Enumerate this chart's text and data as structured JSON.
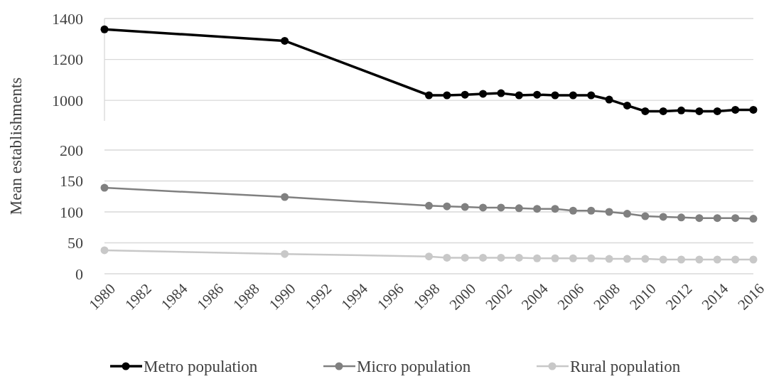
{
  "chart_data": [
    {
      "type": "line",
      "x": [
        1980,
        1990,
        1998,
        1999,
        2000,
        2001,
        2002,
        2003,
        2004,
        2005,
        2006,
        2007,
        2008,
        2009,
        2010,
        2011,
        2012,
        2013,
        2014,
        2015,
        2016
      ],
      "series": [
        {
          "name": "Metro population",
          "color": "#000000",
          "values": [
            1347,
            1291,
            1025,
            1025,
            1028,
            1032,
            1035,
            1025,
            1028,
            1025,
            1025,
            1025,
            1004,
            975,
            947,
            947,
            951,
            947,
            947,
            954,
            954
          ]
        }
      ],
      "xlim": [
        1980,
        2016
      ],
      "xticks": [
        1980,
        1982,
        1984,
        1986,
        1988,
        1990,
        1992,
        1994,
        1996,
        1998,
        2000,
        2002,
        2004,
        2006,
        2008,
        2010,
        2012,
        2014,
        2016
      ],
      "ylim": [
        900,
        1400
      ],
      "yticks": [
        1000,
        1200,
        1400
      ],
      "tick_labels": "y",
      "grid": "y",
      "legend": "bottom",
      "marker": "circle",
      "line_style": "solid"
    },
    {
      "type": "line",
      "ylabel": "Mean establishments",
      "x": [
        1980,
        1990,
        1998,
        1999,
        2000,
        2001,
        2002,
        2003,
        2004,
        2005,
        2006,
        2007,
        2008,
        2009,
        2010,
        2011,
        2012,
        2013,
        2014,
        2015,
        2016
      ],
      "series": [
        {
          "name": "Micro population",
          "color": "#808080",
          "values": [
            139,
            124,
            110,
            109,
            108,
            107,
            107,
            106,
            105,
            105,
            102,
            102,
            100,
            97,
            93,
            92,
            91,
            90,
            90,
            90,
            89
          ]
        },
        {
          "name": "Rural population",
          "color": "#c8c8c8",
          "values": [
            38,
            32,
            28,
            26,
            26,
            26,
            26,
            26,
            25,
            25,
            25,
            25,
            24,
            24,
            24,
            23,
            23,
            23,
            23,
            23,
            23
          ]
        }
      ],
      "xlim": [
        1980,
        2016
      ],
      "xticks": [
        1980,
        1982,
        1984,
        1986,
        1988,
        1990,
        1992,
        1994,
        1996,
        1998,
        2000,
        2002,
        2004,
        2006,
        2008,
        2010,
        2012,
        2014,
        2016
      ],
      "ylim": [
        0,
        200
      ],
      "yticks": [
        0,
        50,
        100,
        150,
        200
      ],
      "grid": "y",
      "legend": "bottom",
      "marker": "circle",
      "line_style": "solid"
    }
  ]
}
